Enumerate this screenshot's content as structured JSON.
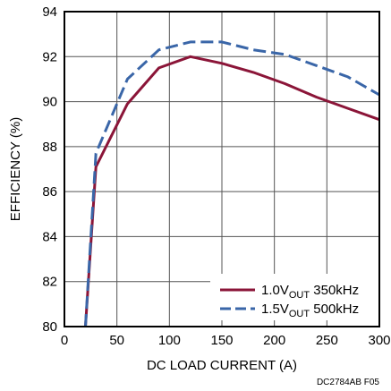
{
  "chart_data": {
    "type": "line",
    "xlabel": "DC LOAD CURRENT (A)",
    "ylabel": "EFFICIENCY (%)",
    "xlim": [
      0,
      300
    ],
    "ylim": [
      80,
      94
    ],
    "xticks": [
      0,
      50,
      100,
      150,
      200,
      250,
      300
    ],
    "yticks": [
      80,
      82,
      84,
      86,
      88,
      90,
      92,
      94
    ],
    "grid": true,
    "legend_position": "bottom-right",
    "series": [
      {
        "name": "1.0V_OUT 350kHz",
        "name_main": "1.0V",
        "name_sub": "OUT",
        "name_rest": " 350kHz",
        "color": "#8b1538",
        "style": "solid",
        "x": [
          20,
          30,
          60,
          90,
          120,
          150,
          180,
          210,
          240,
          270,
          300
        ],
        "y": [
          80.0,
          87.1,
          89.9,
          91.5,
          92.0,
          91.7,
          91.3,
          90.8,
          90.2,
          89.7,
          89.2
        ]
      },
      {
        "name": "1.5V_OUT 500kHz",
        "name_main": "1.5V",
        "name_sub": "OUT",
        "name_rest": " 500kHz",
        "color": "#3a66a8",
        "style": "dashed",
        "x": [
          20,
          30,
          60,
          90,
          120,
          150,
          180,
          210,
          240,
          270,
          300
        ],
        "y": [
          80.0,
          87.7,
          91.0,
          92.3,
          92.65,
          92.65,
          92.3,
          92.1,
          91.6,
          91.1,
          90.3
        ]
      }
    ],
    "footnote": "DC2784AB F05"
  }
}
